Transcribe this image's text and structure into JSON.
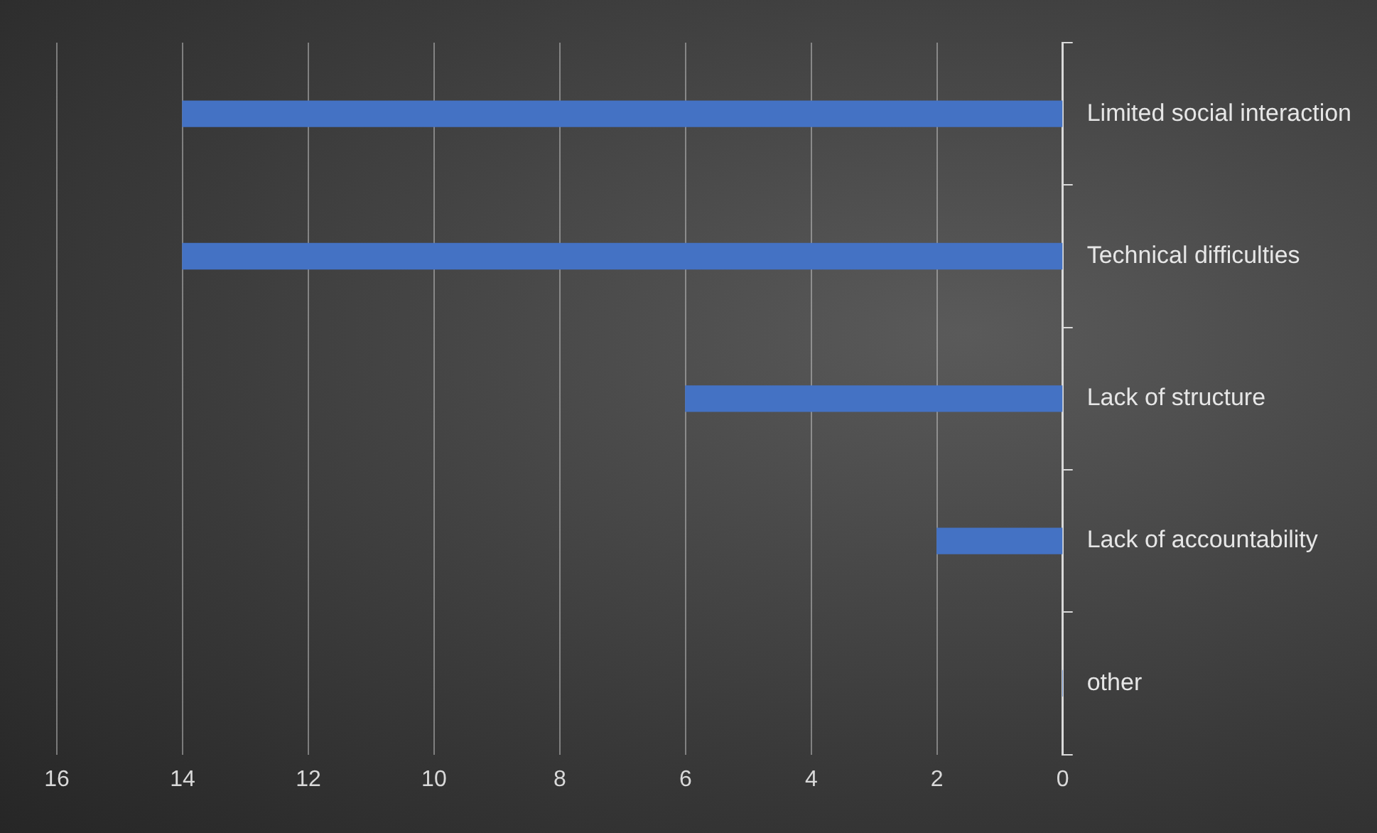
{
  "chart_data": {
    "type": "bar",
    "orientation": "horizontal",
    "categories": [
      "Limited social interaction",
      "Technical difficulties",
      "Lack of structure",
      "Lack of accountability",
      "other"
    ],
    "values": [
      14,
      14,
      6,
      2,
      0
    ],
    "color": "#4472c4",
    "xlim": [
      16,
      0
    ],
    "xticks": [
      16,
      14,
      12,
      10,
      8,
      6,
      4,
      2,
      0
    ],
    "grid": "x"
  }
}
